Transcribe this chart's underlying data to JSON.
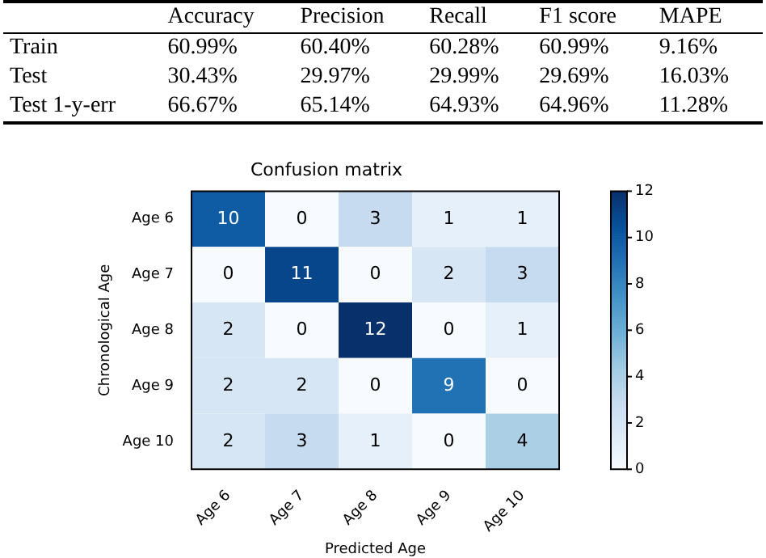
{
  "chart_data": [
    {
      "type": "other",
      "categories": [
        "Accuracy",
        "Precision",
        "Recall",
        "F1 score",
        "MAPE"
      ],
      "y_categories": [
        "Train",
        "Test",
        "Test 1-y-err"
      ],
      "cell_labels": [
        [
          "60.99%",
          "60.40%",
          "60.28%",
          "60.99%",
          "9.16%"
        ],
        [
          "30.43%",
          "29.97%",
          "29.99%",
          "29.69%",
          "16.03%"
        ],
        [
          "66.67%",
          "65.14%",
          "64.93%",
          "64.96%",
          "11.28%"
        ]
      ]
    },
    {
      "type": "heatmap",
      "title": "Confusion matrix",
      "xlabel": "Predicted Age",
      "ylabel": "Chronological Age",
      "categories": [
        "Age 6",
        "Age 7",
        "Age 8",
        "Age 9",
        "Age 10"
      ],
      "y_categories": [
        "Age 6",
        "Age 7",
        "Age 8",
        "Age 9",
        "Age 10"
      ],
      "cells": [
        [
          10,
          0,
          3,
          1,
          1
        ],
        [
          0,
          11,
          0,
          2,
          3
        ],
        [
          2,
          0,
          12,
          0,
          1
        ],
        [
          2,
          2,
          0,
          9,
          0
        ],
        [
          2,
          3,
          1,
          0,
          4
        ]
      ],
      "data_labels": true,
      "clim": [
        0,
        12
      ],
      "cticks": [
        0,
        2,
        4,
        6,
        8,
        10,
        12
      ]
    }
  ]
}
